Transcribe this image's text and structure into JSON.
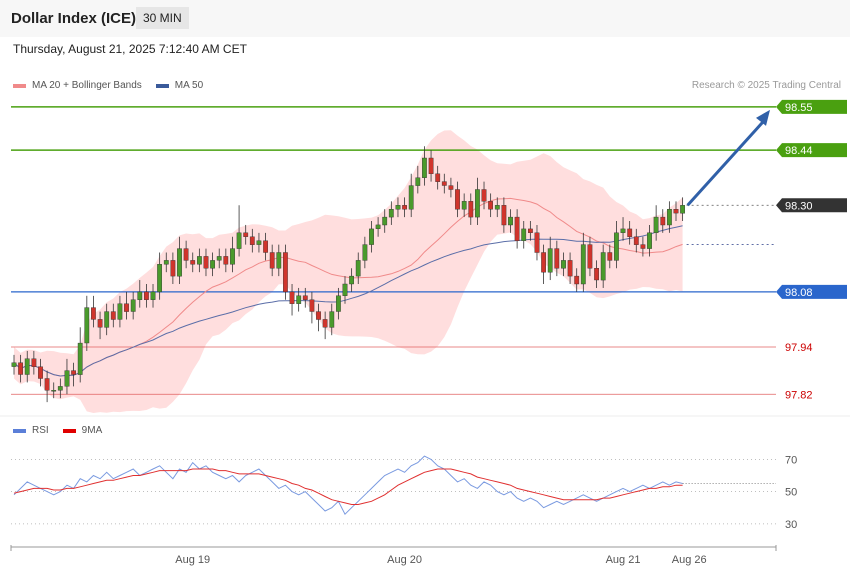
{
  "header": {
    "title": "Dollar Index (ICE)",
    "timeframe": "30 MIN"
  },
  "datetime": "Thursday, August 21, 2025 7:12:40 AM CET",
  "research": "Research © 2025 Trading Central",
  "colors": {
    "up": "#4a9a2c",
    "down": "#d0342c",
    "bb_fill": "#ffdede",
    "ma20": "#f08a8a",
    "ma50": "#5b6ea8",
    "green_level": "#4aa010",
    "blue_level": "#2a66cc",
    "red_level": "#e06060",
    "current": "#333333",
    "rsi": "#7a9ae0",
    "rsi_ma": "#e03030"
  },
  "chart_data": [
    {
      "type": "candlestick",
      "legend": [
        {
          "label": "MA 20 + Bollinger Bands",
          "color": "#f08a8a"
        },
        {
          "label": "MA 50",
          "color": "#3a5a9a"
        }
      ],
      "ylim": [
        97.78,
        98.58
      ],
      "levels": [
        {
          "value": 98.55,
          "label": "98.55",
          "style": "resistance"
        },
        {
          "value": 98.44,
          "label": "98.44",
          "style": "resistance"
        },
        {
          "value": 98.3,
          "label": "98.30",
          "style": "current"
        },
        {
          "value": 98.08,
          "label": "98.08",
          "style": "pivot"
        },
        {
          "value": 97.94,
          "label": "97.94",
          "style": "support"
        },
        {
          "value": 97.82,
          "label": "97.82",
          "style": "support"
        }
      ],
      "x_ticks": [
        {
          "label": "Aug 19",
          "index": 27
        },
        {
          "label": "Aug 20",
          "index": 59
        },
        {
          "label": "Aug 21",
          "index": 92
        },
        {
          "label": "Aug 26",
          "index": 102
        }
      ],
      "close": [
        97.9,
        97.87,
        97.91,
        97.89,
        97.86,
        97.83,
        97.83,
        97.84,
        97.88,
        97.87,
        97.95,
        98.04,
        98.01,
        97.99,
        98.03,
        98.01,
        98.05,
        98.03,
        98.06,
        98.08,
        98.06,
        98.08,
        98.15,
        98.16,
        98.12,
        98.19,
        98.16,
        98.15,
        98.17,
        98.14,
        98.16,
        98.17,
        98.15,
        98.19,
        98.23,
        98.22,
        98.2,
        98.21,
        98.18,
        98.14,
        98.18,
        98.08,
        98.05,
        98.07,
        98.06,
        98.03,
        98.01,
        97.99,
        98.03,
        98.07,
        98.1,
        98.12,
        98.16,
        98.2,
        98.24,
        98.25,
        98.27,
        98.29,
        98.3,
        98.29,
        98.35,
        98.37,
        98.42,
        98.38,
        98.36,
        98.35,
        98.34,
        98.29,
        98.31,
        98.27,
        98.34,
        98.31,
        98.29,
        98.3,
        98.25,
        98.27,
        98.21,
        98.24,
        98.23,
        98.18,
        98.13,
        98.19,
        98.14,
        98.16,
        98.12,
        98.1,
        98.2,
        98.14,
        98.11,
        98.18,
        98.16,
        98.23,
        98.24,
        98.22,
        98.2,
        98.19,
        98.23,
        98.27,
        98.25,
        98.29,
        98.28,
        98.3
      ],
      "high_pad": [
        0.02,
        0.02,
        0.02,
        0.02,
        0.02,
        0.02,
        0.02,
        0.02,
        0.03,
        0.02,
        0.04,
        0.03,
        0.03,
        0.02,
        0.02,
        0.02,
        0.02,
        0.03,
        0.02,
        0.03,
        0.02,
        0.02,
        0.03,
        0.02,
        0.02,
        0.03,
        0.02,
        0.02,
        0.02,
        0.02,
        0.02,
        0.02,
        0.02,
        0.03,
        0.07,
        0.02,
        0.02,
        0.02,
        0.02,
        0.02,
        0.02,
        0.02,
        0.02,
        0.02,
        0.02,
        0.02,
        0.02,
        0.02,
        0.02,
        0.02,
        0.02,
        0.02,
        0.02,
        0.02,
        0.02,
        0.02,
        0.02,
        0.02,
        0.02,
        0.02,
        0.03,
        0.03,
        0.03,
        0.02,
        0.02,
        0.02,
        0.02,
        0.02,
        0.02,
        0.02,
        0.03,
        0.02,
        0.02,
        0.02,
        0.02,
        0.02,
        0.02,
        0.02,
        0.02,
        0.02,
        0.02,
        0.03,
        0.02,
        0.02,
        0.02,
        0.02,
        0.03,
        0.02,
        0.02,
        0.02,
        0.02,
        0.03,
        0.03,
        0.02,
        0.02,
        0.02,
        0.02,
        0.03,
        0.02,
        0.02,
        0.02,
        0.02
      ],
      "low_pad": [
        0.02,
        0.02,
        0.02,
        0.02,
        0.02,
        0.03,
        0.02,
        0.02,
        0.02,
        0.03,
        0.02,
        0.02,
        0.02,
        0.03,
        0.02,
        0.02,
        0.02,
        0.02,
        0.02,
        0.02,
        0.02,
        0.02,
        0.02,
        0.02,
        0.02,
        0.02,
        0.02,
        0.02,
        0.02,
        0.02,
        0.02,
        0.02,
        0.02,
        0.02,
        0.02,
        0.02,
        0.02,
        0.02,
        0.02,
        0.02,
        0.02,
        0.02,
        0.03,
        0.02,
        0.02,
        0.03,
        0.03,
        0.03,
        0.02,
        0.02,
        0.02,
        0.02,
        0.02,
        0.02,
        0.02,
        0.02,
        0.02,
        0.02,
        0.02,
        0.02,
        0.02,
        0.02,
        0.02,
        0.02,
        0.02,
        0.02,
        0.02,
        0.02,
        0.02,
        0.02,
        0.02,
        0.02,
        0.02,
        0.02,
        0.02,
        0.02,
        0.02,
        0.02,
        0.02,
        0.02,
        0.03,
        0.02,
        0.02,
        0.02,
        0.02,
        0.02,
        0.02,
        0.02,
        0.02,
        0.02,
        0.02,
        0.02,
        0.02,
        0.02,
        0.02,
        0.02,
        0.02,
        0.02,
        0.02,
        0.02,
        0.02,
        0.02
      ],
      "forecast_arrow": {
        "from": 98.3,
        "to": 98.55
      }
    },
    {
      "type": "line",
      "legend": [
        {
          "label": "RSI",
          "color": "#5b7fd8"
        },
        {
          "label": "9MA",
          "color": "#e00000"
        }
      ],
      "ylim": [
        20,
        82
      ],
      "y_ticks": [
        70,
        50,
        30
      ],
      "rsi": [
        48,
        52,
        56,
        54,
        52,
        50,
        48,
        50,
        54,
        52,
        58,
        56,
        60,
        58,
        62,
        58,
        60,
        62,
        64,
        60,
        62,
        64,
        66,
        62,
        58,
        64,
        62,
        68,
        64,
        66,
        62,
        60,
        58,
        60,
        56,
        60,
        62,
        64,
        60,
        56,
        52,
        54,
        50,
        48,
        50,
        46,
        42,
        38,
        40,
        44,
        36,
        40,
        44,
        48,
        52,
        56,
        60,
        62,
        64,
        62,
        66,
        68,
        72,
        70,
        66,
        64,
        60,
        56,
        58,
        54,
        52,
        56,
        54,
        50,
        48,
        50,
        46,
        44,
        46,
        44,
        40,
        42,
        44,
        42,
        44,
        46,
        48,
        46,
        44,
        46,
        48,
        50,
        52,
        50,
        52,
        54,
        52,
        54,
        56,
        54,
        56,
        55
      ],
      "rsi_ma": [
        49,
        50,
        51,
        52,
        52,
        52,
        51,
        51,
        52,
        52,
        53,
        54,
        55,
        56,
        57,
        57,
        58,
        59,
        60,
        60,
        61,
        62,
        63,
        63,
        63,
        63,
        63,
        64,
        64,
        64,
        64,
        63,
        63,
        62,
        61,
        61,
        61,
        61,
        60,
        59,
        58,
        57,
        55,
        54,
        52,
        51,
        49,
        47,
        45,
        44,
        43,
        42,
        42,
        43,
        44,
        46,
        48,
        51,
        54,
        56,
        58,
        60,
        62,
        63,
        64,
        64,
        64,
        63,
        62,
        61,
        59,
        58,
        57,
        56,
        55,
        54,
        52,
        51,
        50,
        49,
        48,
        47,
        46,
        45,
        45,
        45,
        45,
        45,
        45,
        46,
        46,
        47,
        48,
        49,
        50,
        51,
        52,
        52,
        53,
        53,
        54,
        54
      ]
    }
  ]
}
